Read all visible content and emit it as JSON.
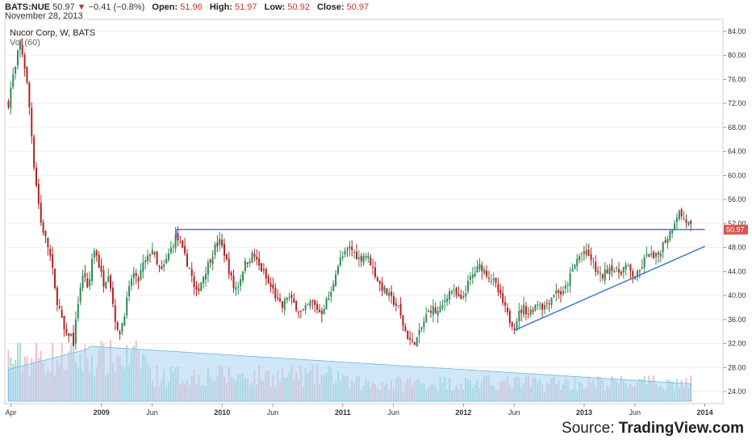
{
  "header": {
    "symbol": "BATS:NUE",
    "last": "50.97",
    "change": "−0.41 (−0.8%)",
    "open_label": "Open:",
    "open": "51.96",
    "high_label": "High:",
    "high": "51.97",
    "low_label": "Low:",
    "low": "50.92",
    "close_label": "Close:",
    "close": "50.97",
    "date": "November 28, 2013"
  },
  "chart_title": "Nucor Corp, W, BATS",
  "volume_label": "Vol (60)",
  "source": {
    "prefix": "Source: ",
    "brand": "TradingView.com"
  },
  "colors": {
    "up": "#2e8b57",
    "down": "#b22222",
    "trendline": "#3a7bd5",
    "vol_up": "#9ed9cf",
    "vol_down": "#f2b8c0",
    "vol_ma": "#a9d4f2",
    "last_price_tag": "#d9534f"
  },
  "chart_data": {
    "type": "candlestick",
    "title": "Nucor Corp, W, BATS",
    "ylim": [
      22,
      86
    ],
    "y_ticks": [
      "24.00",
      "28.00",
      "32.00",
      "36.00",
      "40.00",
      "44.00",
      "48.00",
      "52.00",
      "56.00",
      "60.00",
      "64.00",
      "68.00",
      "72.00",
      "76.00",
      "80.00",
      "84.00"
    ],
    "x_ticks": [
      "Apr",
      "2009",
      "Jun",
      "2010",
      "Jun",
      "2011",
      "Jun",
      "2012",
      "Jun",
      "2013",
      "Jun",
      "2014"
    ],
    "x_tick_dates": [
      2008.25,
      2009.0,
      2009.42,
      2010.0,
      2010.42,
      2011.0,
      2011.42,
      2012.0,
      2012.42,
      2013.0,
      2013.42,
      2014.0
    ],
    "xlim": [
      2008.2,
      2014.15
    ],
    "last_price_label": "50.97",
    "close_path": [
      [
        2008.23,
        72
      ],
      [
        2008.26,
        76
      ],
      [
        2008.29,
        78
      ],
      [
        2008.32,
        82
      ],
      [
        2008.35,
        80
      ],
      [
        2008.38,
        76
      ],
      [
        2008.41,
        70
      ],
      [
        2008.44,
        62
      ],
      [
        2008.47,
        57
      ],
      [
        2008.5,
        52
      ],
      [
        2008.53,
        50
      ],
      [
        2008.56,
        48
      ],
      [
        2008.59,
        45
      ],
      [
        2008.62,
        40
      ],
      [
        2008.65,
        38
      ],
      [
        2008.68,
        35
      ],
      [
        2008.71,
        33
      ],
      [
        2008.74,
        34
      ],
      [
        2008.77,
        32
      ],
      [
        2008.8,
        38
      ],
      [
        2008.83,
        42
      ],
      [
        2008.86,
        44
      ],
      [
        2008.89,
        40
      ],
      [
        2008.92,
        46
      ],
      [
        2008.95,
        48
      ],
      [
        2008.98,
        45
      ],
      [
        2009.02,
        42
      ],
      [
        2009.06,
        44
      ],
      [
        2009.1,
        38
      ],
      [
        2009.14,
        33
      ],
      [
        2009.18,
        36
      ],
      [
        2009.22,
        40
      ],
      [
        2009.26,
        44
      ],
      [
        2009.3,
        42
      ],
      [
        2009.34,
        45
      ],
      [
        2009.38,
        46
      ],
      [
        2009.42,
        48
      ],
      [
        2009.46,
        45
      ],
      [
        2009.5,
        44
      ],
      [
        2009.54,
        46
      ],
      [
        2009.58,
        48
      ],
      [
        2009.62,
        50
      ],
      [
        2009.66,
        48
      ],
      [
        2009.7,
        46
      ],
      [
        2009.74,
        44
      ],
      [
        2009.78,
        40
      ],
      [
        2009.82,
        42
      ],
      [
        2009.86,
        44
      ],
      [
        2009.9,
        46
      ],
      [
        2009.94,
        48
      ],
      [
        2009.98,
        49
      ],
      [
        2010.02,
        47
      ],
      [
        2010.06,
        44
      ],
      [
        2010.1,
        41
      ],
      [
        2010.14,
        42
      ],
      [
        2010.18,
        45
      ],
      [
        2010.22,
        46
      ],
      [
        2010.26,
        47
      ],
      [
        2010.3,
        45
      ],
      [
        2010.34,
        44
      ],
      [
        2010.38,
        42
      ],
      [
        2010.42,
        41
      ],
      [
        2010.46,
        39
      ],
      [
        2010.5,
        38
      ],
      [
        2010.54,
        40
      ],
      [
        2010.58,
        39
      ],
      [
        2010.62,
        38
      ],
      [
        2010.66,
        37
      ],
      [
        2010.7,
        38
      ],
      [
        2010.74,
        39
      ],
      [
        2010.78,
        38
      ],
      [
        2010.82,
        37
      ],
      [
        2010.86,
        39
      ],
      [
        2010.9,
        40
      ],
      [
        2010.94,
        44
      ],
      [
        2010.98,
        46
      ],
      [
        2011.02,
        47
      ],
      [
        2011.06,
        48
      ],
      [
        2011.1,
        47
      ],
      [
        2011.14,
        46
      ],
      [
        2011.18,
        47
      ],
      [
        2011.22,
        46
      ],
      [
        2011.26,
        44
      ],
      [
        2011.3,
        42
      ],
      [
        2011.34,
        41
      ],
      [
        2011.38,
        40
      ],
      [
        2011.42,
        39
      ],
      [
        2011.46,
        38
      ],
      [
        2011.5,
        35
      ],
      [
        2011.54,
        33
      ],
      [
        2011.58,
        32
      ],
      [
        2011.62,
        33
      ],
      [
        2011.66,
        35
      ],
      [
        2011.7,
        37
      ],
      [
        2011.74,
        38
      ],
      [
        2011.78,
        37
      ],
      [
        2011.82,
        38
      ],
      [
        2011.86,
        40
      ],
      [
        2011.9,
        41
      ],
      [
        2011.94,
        40
      ],
      [
        2011.98,
        39
      ],
      [
        2012.02,
        41
      ],
      [
        2012.06,
        43
      ],
      [
        2012.1,
        44
      ],
      [
        2012.14,
        45
      ],
      [
        2012.18,
        44
      ],
      [
        2012.22,
        43
      ],
      [
        2012.26,
        42
      ],
      [
        2012.3,
        40
      ],
      [
        2012.34,
        38
      ],
      [
        2012.38,
        36
      ],
      [
        2012.42,
        35
      ],
      [
        2012.46,
        37
      ],
      [
        2012.5,
        38
      ],
      [
        2012.54,
        37
      ],
      [
        2012.58,
        38
      ],
      [
        2012.62,
        39
      ],
      [
        2012.66,
        38
      ],
      [
        2012.7,
        39
      ],
      [
        2012.74,
        40
      ],
      [
        2012.78,
        41
      ],
      [
        2012.82,
        40
      ],
      [
        2012.86,
        42
      ],
      [
        2012.9,
        44
      ],
      [
        2012.94,
        46
      ],
      [
        2012.98,
        47
      ],
      [
        2013.02,
        47
      ],
      [
        2013.06,
        46
      ],
      [
        2013.1,
        44
      ],
      [
        2013.14,
        43
      ],
      [
        2013.18,
        44
      ],
      [
        2013.22,
        45
      ],
      [
        2013.26,
        44
      ],
      [
        2013.3,
        44
      ],
      [
        2013.34,
        45
      ],
      [
        2013.38,
        44
      ],
      [
        2013.42,
        43
      ],
      [
        2013.46,
        44
      ],
      [
        2013.5,
        46
      ],
      [
        2013.54,
        47
      ],
      [
        2013.58,
        46
      ],
      [
        2013.62,
        47
      ],
      [
        2013.66,
        49
      ],
      [
        2013.7,
        50
      ],
      [
        2013.74,
        52
      ],
      [
        2013.78,
        54
      ],
      [
        2013.82,
        53
      ],
      [
        2013.86,
        52
      ],
      [
        2013.9,
        51
      ]
    ],
    "annotations": {
      "resistance_line": {
        "x": [
          2009.62,
          2014.0
        ],
        "y": 51.0
      },
      "support_trendline": {
        "x": [
          2012.42,
          2014.0
        ],
        "y": [
          34.2,
          48.2
        ]
      }
    }
  }
}
